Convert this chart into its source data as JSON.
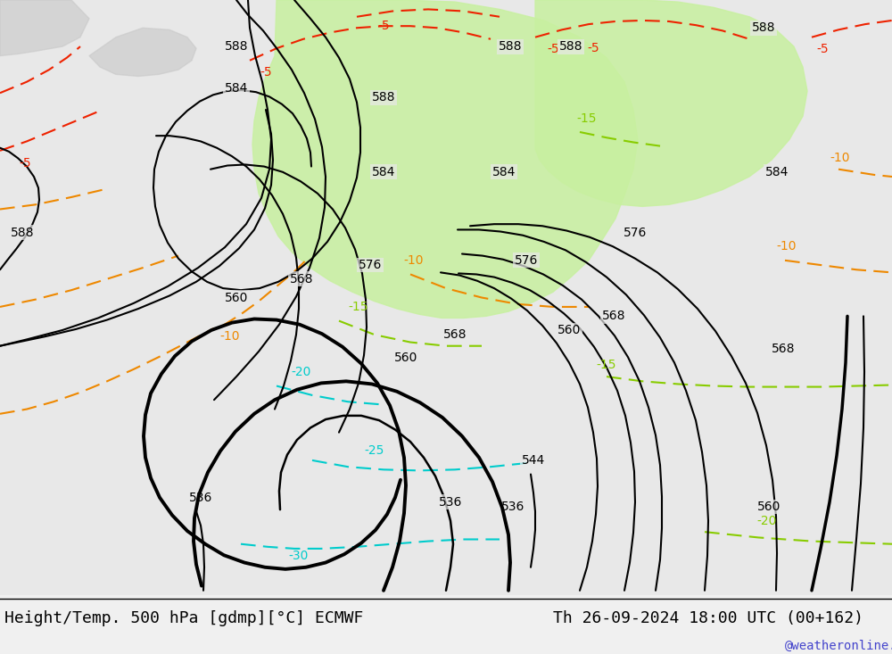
{
  "title_left": "Height/Temp. 500 hPa [gdmp][°C] ECMWF",
  "title_right": "Th 26-09-2024 18:00 UTC (00+162)",
  "watermark": "@weatheronline.co.uk",
  "bg_color": "#e8e8e8",
  "map_bg": "#d8d8d8",
  "land_color": "#d8d8d8",
  "green_fill": "#c8f0a0",
  "title_bg": "#f0f0f0",
  "bottom_bg": "#f0f0f0",
  "font_color": "#000000",
  "watermark_color": "#4444cc"
}
